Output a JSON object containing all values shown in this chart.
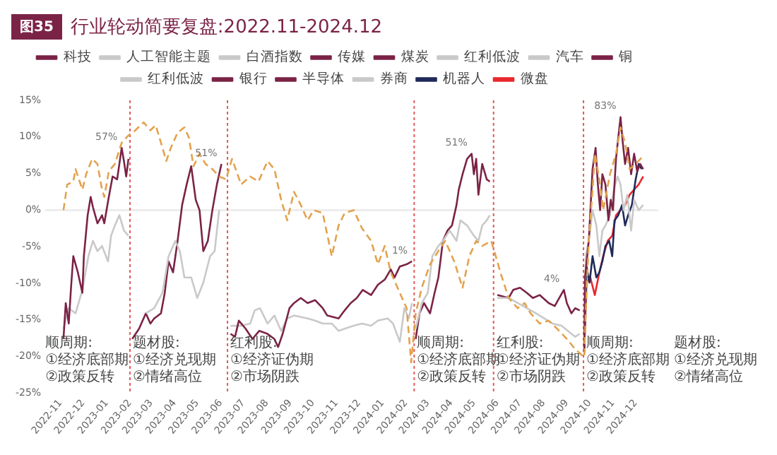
{
  "chart_data": {
    "type": "line",
    "title": "行业轮动简要复盘:2022.11-2024.12",
    "legend": "top",
    "marker": "none",
    "xlim": [
      "2022-10-12",
      "2024-12-31"
    ],
    "xticks": [
      "2022-11",
      "2022-12",
      "2023-01",
      "2023-02",
      "2023-03",
      "2023-04",
      "2023-05",
      "2023-06",
      "2023-07",
      "2023-08",
      "2023-09",
      "2023-10",
      "2023-11",
      "2023-12",
      "2024-01",
      "2024-02",
      "2024-03",
      "2024-04",
      "2024-05",
      "2024-06",
      "2024-07",
      "2024-08",
      "2024-09",
      "2024-10",
      "2024-11",
      "2024-12"
    ],
    "ylim": [
      -25,
      15
    ],
    "yticks": [
      {
        "value": 15,
        "label": "15%"
      },
      {
        "value": 10,
        "label": "10%"
      },
      {
        "value": 5,
        "label": "5%"
      },
      {
        "value": 0,
        "label": "0%"
      },
      {
        "value": -5,
        "label": "-5%"
      },
      {
        "value": -10,
        "label": "-10%"
      },
      {
        "value": -15,
        "label": "-15%"
      },
      {
        "value": -20,
        "label": "-20%"
      },
      {
        "value": -25,
        "label": "-25%"
      }
    ],
    "ref_lines": [
      {
        "axis": "y",
        "value": 0,
        "color": "#e6e6e6",
        "line_style": "solid"
      },
      {
        "axis": "x",
        "value": "2023-02-01",
        "color": "#e05a5a",
        "line_style": "dotted"
      },
      {
        "axis": "x",
        "value": "2023-06-10",
        "color": "#e05a5a",
        "line_style": "dotted"
      },
      {
        "axis": "x",
        "value": "2024-02-12",
        "color": "#e05a5a",
        "line_style": "dotted"
      },
      {
        "axis": "x",
        "value": "2024-05-27",
        "color": "#e05a5a",
        "line_style": "dotted"
      },
      {
        "axis": "x",
        "value": "2024-09-23",
        "color": "#e05a5a",
        "line_style": "dotted"
      }
    ],
    "annotations": [
      "图35",
      {
        "text": "57%",
        "x": "2023-01-21",
        "y": 8.5
      },
      {
        "text": "51%",
        "x": "2023-06-02",
        "y": 6.3
      },
      {
        "text": "1%",
        "x": "2024-02-09",
        "y": -7.0
      },
      {
        "text": "51%",
        "x": "2024-04-28",
        "y": 7.7
      },
      {
        "text": "4%",
        "x": "2024-08-28",
        "y": -10.9
      },
      {
        "text": "83%",
        "x": "2024-11-11",
        "y": 12.7
      },
      "顺周期:\n①经济底部期\n②政策反转",
      "题材股:\n①经济兑现期\n②情绪高位",
      "红利股:\n①经济证伪期\n②市场阴跌",
      "顺周期:\n①经济底部期\n②政策反转",
      "红利股:\n①经济证伪期\n②市场阴跌",
      "顺周期:\n①经济底部期\n②政策反转",
      "题材股:\n①经济兑现期\n②情绪高位"
    ],
    "series": [
      {
        "color": "#e3a24e",
        "line_style": "dashed",
        "x": [
          "2022-11-05",
          "2022-11-10",
          "2022-11-18",
          "2022-11-21",
          "2022-11-30",
          "2022-12-05",
          "2022-12-13",
          "2022-12-20",
          "2022-12-26",
          "2022-12-29",
          "2023-01-04",
          "2023-01-12",
          "2023-01-21",
          "2023-01-30",
          "2023-02-08",
          "2023-02-19",
          "2023-02-28",
          "2023-03-07",
          "2023-03-16",
          "2023-03-21",
          "2023-03-27",
          "2023-04-05",
          "2023-04-14",
          "2023-04-20",
          "2023-04-26",
          "2023-05-04",
          "2023-05-12",
          "2023-05-21",
          "2023-05-30",
          "2023-06-08",
          "2023-06-16",
          "2023-06-28",
          "2023-07-10",
          "2023-07-21",
          "2023-08-02",
          "2023-08-11",
          "2023-08-20",
          "2023-08-28",
          "2023-09-06",
          "2023-09-15",
          "2023-09-24",
          "2023-10-02",
          "2023-10-14",
          "2023-10-26",
          "2023-11-04",
          "2023-11-12",
          "2023-11-24",
          "2023-12-05",
          "2023-12-17",
          "2023-12-26",
          "2024-01-04",
          "2024-01-12",
          "2024-01-24",
          "2024-02-02",
          "2024-02-08",
          "2024-02-14",
          "2024-02-22",
          "2024-03-04",
          "2024-03-15",
          "2024-03-24",
          "2024-04-05",
          "2024-04-16",
          "2024-04-25",
          "2024-05-04",
          "2024-05-12",
          "2024-05-24",
          "2024-06-02",
          "2024-06-05",
          "2024-06-16",
          "2024-06-28",
          "2024-07-07",
          "2024-07-15",
          "2024-07-27",
          "2024-08-08",
          "2024-08-19",
          "2024-09-01",
          "2024-09-12",
          "2024-09-24",
          "2024-09-26",
          "2024-09-30",
          "2024-10-05",
          "2024-10-08",
          "2024-10-14",
          "2024-10-19",
          "2024-10-28",
          "2024-11-05",
          "2024-11-11",
          "2024-11-17",
          "2024-11-23",
          "2024-12-01",
          "2024-12-11"
        ],
        "values": [
          0,
          3.5,
          3.9,
          5.6,
          2.8,
          4.9,
          7.0,
          6.3,
          2.8,
          1.8,
          5.3,
          6.3,
          9.2,
          10.2,
          10.9,
          12.0,
          10.9,
          11.6,
          8.5,
          6.7,
          8.5,
          10.6,
          11.3,
          9.9,
          6.0,
          7.7,
          6.3,
          5.6,
          4.6,
          4.2,
          7.0,
          3.5,
          4.6,
          3.9,
          6.7,
          5.6,
          1.4,
          -1.4,
          2.5,
          0.7,
          -1.4,
          0,
          -0.4,
          -6.3,
          -2.1,
          -0.4,
          0,
          -2.5,
          -4.2,
          -7.4,
          -4.9,
          -8.5,
          -11.3,
          -13.4,
          -20.8,
          -14.1,
          -10.6,
          -7.4,
          -5.6,
          -4.2,
          -7.0,
          -10.6,
          -6.3,
          -4.2,
          -4.9,
          -4.2,
          -7.4,
          -8.5,
          -12.0,
          -13.4,
          -12.7,
          -14.1,
          -15.5,
          -15.1,
          -16.2,
          -17.6,
          -19.0,
          -20.1,
          -14.1,
          -4.2,
          2.8,
          7.7,
          4.2,
          0,
          4.9,
          7.7,
          11.3,
          9.2,
          5.6,
          6.3,
          7.4
        ]
      },
      {
        "name": "科技",
        "color": "#7b2346",
        "x": [
          "2022-11-05",
          "2022-11-08",
          "2022-11-12",
          "2022-11-15",
          "2022-11-18",
          "2022-11-24",
          "2022-11-30",
          "2022-12-02",
          "2022-12-07",
          "2022-12-11",
          "2022-12-14",
          "2022-12-20",
          "2022-12-26",
          "2022-12-29",
          "2023-01-04",
          "2023-01-09",
          "2023-01-15",
          "2023-01-21",
          "2023-01-24",
          "2023-01-27",
          "2023-01-30"
        ],
        "values": [
          -17.6,
          -12.7,
          -15.5,
          -10.6,
          -6.3,
          -8.5,
          -11.3,
          -6.3,
          -0.7,
          1.8,
          0.4,
          -1.8,
          -0.7,
          -1.8,
          1.8,
          4.6,
          4.2,
          8.5,
          6.7,
          4.6,
          7.0
        ]
      },
      {
        "name": "人工智能主题",
        "color": "#c9c9c9",
        "x": [
          "2023-02-22",
          "2023-03-05",
          "2023-03-16",
          "2023-03-24",
          "2023-04-02",
          "2023-04-08",
          "2023-04-14",
          "2023-04-23",
          "2023-05-01",
          "2023-05-09",
          "2023-05-18",
          "2023-05-24",
          "2023-05-30"
        ],
        "values": [
          -14.1,
          -13.4,
          -11.3,
          -6.3,
          -4.2,
          -5.6,
          -9.2,
          -9.2,
          -12.0,
          -9.9,
          -6.3,
          -5.6,
          0
        ]
      },
      {
        "name": "白酒指数",
        "color": "#c9c9c9",
        "x": [
          "2022-11-05",
          "2022-11-12",
          "2022-11-21",
          "2022-11-30",
          "2022-12-08",
          "2022-12-14",
          "2022-12-20",
          "2022-12-26",
          "2023-01-03",
          "2023-01-07",
          "2023-01-12",
          "2023-01-18",
          "2023-01-24",
          "2023-01-30"
        ],
        "values": [
          -16.2,
          -13.4,
          -14.1,
          -10.9,
          -6.3,
          -4.2,
          -5.6,
          -4.9,
          -7.0,
          -3.5,
          -2.1,
          -0.7,
          -2.8,
          -3.5
        ]
      },
      {
        "name": "传媒",
        "color": "#7b2346",
        "x": [
          "2023-02-04",
          "2023-02-13",
          "2023-02-22",
          "2023-02-28",
          "2023-03-05",
          "2023-03-14",
          "2023-03-19",
          "2023-03-24",
          "2023-03-30",
          "2023-04-05",
          "2023-04-11",
          "2023-04-17",
          "2023-04-23",
          "2023-04-29",
          "2023-05-04",
          "2023-05-09",
          "2023-05-15",
          "2023-05-21",
          "2023-05-27",
          "2023-06-02"
        ],
        "values": [
          -17.6,
          -16.2,
          -14.1,
          -15.5,
          -14.8,
          -14.1,
          -11.3,
          -7.0,
          -8.5,
          -4.2,
          0.7,
          3.5,
          6.0,
          1.4,
          0,
          -5.6,
          -4.2,
          0,
          3.5,
          6.3
        ]
      },
      {
        "name": "煤炭",
        "color": "#7b2346",
        "x": [
          "2023-06-14",
          "2023-06-20",
          "2023-06-25",
          "2023-07-04",
          "2023-07-13",
          "2023-07-22",
          "2023-08-02",
          "2023-08-11",
          "2023-08-16",
          "2023-08-22",
          "2023-08-31",
          "2023-09-06",
          "2023-09-15",
          "2023-09-24",
          "2023-10-04",
          "2023-10-14",
          "2023-10-20",
          "2023-11-04",
          "2023-11-12",
          "2023-11-20",
          "2023-11-28",
          "2023-12-06",
          "2023-12-17",
          "2023-12-26",
          "2024-01-04",
          "2024-01-12",
          "2024-01-17",
          "2024-01-24",
          "2024-02-02",
          "2024-02-09"
        ],
        "values": [
          -16.9,
          -17.3,
          -15.1,
          -16.2,
          -17.6,
          -16.5,
          -16.9,
          -17.6,
          -18.7,
          -16.9,
          -13.4,
          -12.7,
          -12.0,
          -12.7,
          -12.3,
          -13.4,
          -14.4,
          -14.8,
          -13.7,
          -12.7,
          -12.0,
          -10.9,
          -11.6,
          -10.2,
          -9.5,
          -8.1,
          -9.2,
          -7.7,
          -7.4,
          -7.0
        ]
      },
      {
        "name": "红利低波",
        "color": "#c9c9c9",
        "x": [
          "2023-06-14",
          "2023-06-28",
          "2023-07-10",
          "2023-07-16",
          "2023-07-23",
          "2023-08-02",
          "2023-08-11",
          "2023-08-20",
          "2023-08-28",
          "2023-09-06",
          "2023-09-24",
          "2023-10-04",
          "2023-10-14",
          "2023-10-26",
          "2023-11-04",
          "2023-11-12",
          "2023-11-24",
          "2023-12-05",
          "2023-12-17",
          "2023-12-26",
          "2024-01-08",
          "2024-01-15",
          "2024-01-24",
          "2024-01-30",
          "2024-02-05",
          "2024-02-09"
        ],
        "values": [
          -15.8,
          -15.8,
          -15.5,
          -13.7,
          -13.4,
          -15.5,
          -14.4,
          -16.5,
          -14.8,
          -14.4,
          -14.8,
          -15.1,
          -15.5,
          -15.5,
          -16.5,
          -16.2,
          -15.8,
          -15.5,
          -15.8,
          -15.1,
          -14.8,
          -15.5,
          -18.0,
          -13.4,
          -14.8,
          -12.7
        ]
      },
      {
        "name": "汽车",
        "color": "#c9c9c9",
        "x": [
          "2024-02-14",
          "2024-02-22",
          "2024-03-01",
          "2024-03-07",
          "2024-03-15",
          "2024-03-21",
          "2024-03-30",
          "2024-04-08",
          "2024-04-13",
          "2024-04-22",
          "2024-05-01",
          "2024-05-07",
          "2024-05-12",
          "2024-05-18",
          "2024-05-22"
        ],
        "values": [
          -16.2,
          -12.7,
          -11.3,
          -6.3,
          -4.9,
          -4.2,
          -2.8,
          -4.2,
          -1.4,
          -2.1,
          -3.5,
          -4.2,
          -2.1,
          -1.4,
          -0.7
        ]
      },
      {
        "name": "铜",
        "color": "#7b2346",
        "x": [
          "2024-02-14",
          "2024-02-19",
          "2024-02-25",
          "2024-03-04",
          "2024-03-10",
          "2024-03-15",
          "2024-03-21",
          "2024-03-27",
          "2024-04-02",
          "2024-04-08",
          "2024-04-11",
          "2024-04-16",
          "2024-04-22",
          "2024-04-28",
          "2024-05-01",
          "2024-05-04",
          "2024-05-07",
          "2024-05-12",
          "2024-05-18",
          "2024-05-22"
        ],
        "values": [
          -17.6,
          -14.1,
          -12.7,
          -14.1,
          -11.3,
          -9.2,
          -4.2,
          -2.8,
          -2.1,
          0.7,
          2.8,
          4.9,
          7.0,
          7.7,
          4.9,
          7.0,
          2.1,
          6.3,
          4.2,
          3.9
        ]
      },
      {
        "name": "红利低波",
        "color": "#c9c9c9",
        "x": [
          "2024-06-01",
          "2024-06-16",
          "2024-06-28",
          "2024-07-10",
          "2024-07-22",
          "2024-08-02",
          "2024-08-13",
          "2024-08-25",
          "2024-09-07",
          "2024-09-12",
          "2024-09-18"
        ],
        "values": [
          -12.0,
          -12.0,
          -12.7,
          -13.4,
          -14.1,
          -14.8,
          -15.5,
          -15.8,
          -16.9,
          -17.3,
          -16.9
        ]
      },
      {
        "name": "银行",
        "color": "#7b2346",
        "x": [
          "2024-06-01",
          "2024-06-16",
          "2024-06-22",
          "2024-07-01",
          "2024-07-10",
          "2024-07-18",
          "2024-07-27",
          "2024-08-08",
          "2024-08-16",
          "2024-08-22",
          "2024-08-28",
          "2024-09-01",
          "2024-09-07",
          "2024-09-12",
          "2024-09-18"
        ],
        "values": [
          -11.6,
          -12.0,
          -10.9,
          -10.6,
          -11.3,
          -12.0,
          -11.6,
          -12.7,
          -13.1,
          -12.0,
          -10.9,
          -12.7,
          -14.1,
          -13.4,
          -13.7
        ]
      },
      {
        "name": "半导体",
        "color": "#7b2346",
        "x": [
          "2024-09-24",
          "2024-09-25",
          "2024-09-30",
          "2024-10-05",
          "2024-10-09",
          "2024-10-12",
          "2024-10-15",
          "2024-10-18",
          "2024-10-22",
          "2024-10-26",
          "2024-10-29",
          "2024-11-01",
          "2024-11-05",
          "2024-11-08",
          "2024-11-11",
          "2024-11-14",
          "2024-11-17",
          "2024-11-21",
          "2024-11-25",
          "2024-11-29",
          "2024-12-03",
          "2024-12-07",
          "2024-12-11"
        ],
        "values": [
          -19.4,
          -9.2,
          -4.2,
          5.6,
          8.5,
          3.5,
          0,
          4.9,
          3.5,
          -1.4,
          1.4,
          0,
          7.0,
          9.9,
          12.7,
          9.2,
          6.3,
          8.5,
          4.9,
          7.7,
          5.3,
          6.3,
          5.6
        ]
      },
      {
        "name": "券商",
        "color": "#c9c9c9",
        "x": [
          "2024-09-24",
          "2024-09-26",
          "2024-10-01",
          "2024-10-05",
          "2024-10-10",
          "2024-10-14",
          "2024-10-18",
          "2024-10-22",
          "2024-10-28",
          "2024-11-02",
          "2024-11-07",
          "2024-11-11",
          "2024-11-15",
          "2024-11-20",
          "2024-11-25",
          "2024-11-29",
          "2024-12-05",
          "2024-12-11"
        ],
        "values": [
          -19.4,
          -6.3,
          -3.5,
          0,
          -2.1,
          -6.3,
          -2.8,
          -2.1,
          -0.7,
          2.8,
          4.6,
          3.5,
          0,
          2.1,
          -2.8,
          1.4,
          0,
          0.7
        ]
      },
      {
        "name": "机器人",
        "color": "#1f2a5a",
        "x": [
          "2024-09-24",
          "2024-09-27",
          "2024-10-01",
          "2024-10-05",
          "2024-10-10",
          "2024-10-14",
          "2024-10-18",
          "2024-10-22",
          "2024-10-27",
          "2024-10-31",
          "2024-11-03",
          "2024-11-08",
          "2024-11-13",
          "2024-11-17",
          "2024-11-21",
          "2024-11-26",
          "2024-12-01",
          "2024-12-05",
          "2024-12-09"
        ],
        "values": [
          -19.4,
          -7.7,
          -9.9,
          -6.3,
          -9.2,
          -8.5,
          -7.0,
          -4.9,
          -4.2,
          -6.3,
          -1.4,
          -0.7,
          0.7,
          -2.1,
          -0.7,
          0.7,
          4.2,
          6.3,
          5.6
        ]
      },
      {
        "name": "微盘",
        "color": "#e8282d",
        "x": [
          "2024-09-24",
          "2024-09-27",
          "2024-10-02",
          "2024-10-08",
          "2024-10-14",
          "2024-10-19",
          "2024-10-25",
          "2024-10-31",
          "2024-11-05",
          "2024-11-11",
          "2024-11-17",
          "2024-11-23",
          "2024-11-29",
          "2024-12-05",
          "2024-12-11"
        ],
        "values": [
          -19.4,
          -9.9,
          -9.2,
          -11.6,
          -8.5,
          -6.3,
          -4.2,
          -3.5,
          -0.7,
          0,
          0.7,
          2.1,
          2.8,
          3.5,
          4.6
        ]
      }
    ]
  }
}
